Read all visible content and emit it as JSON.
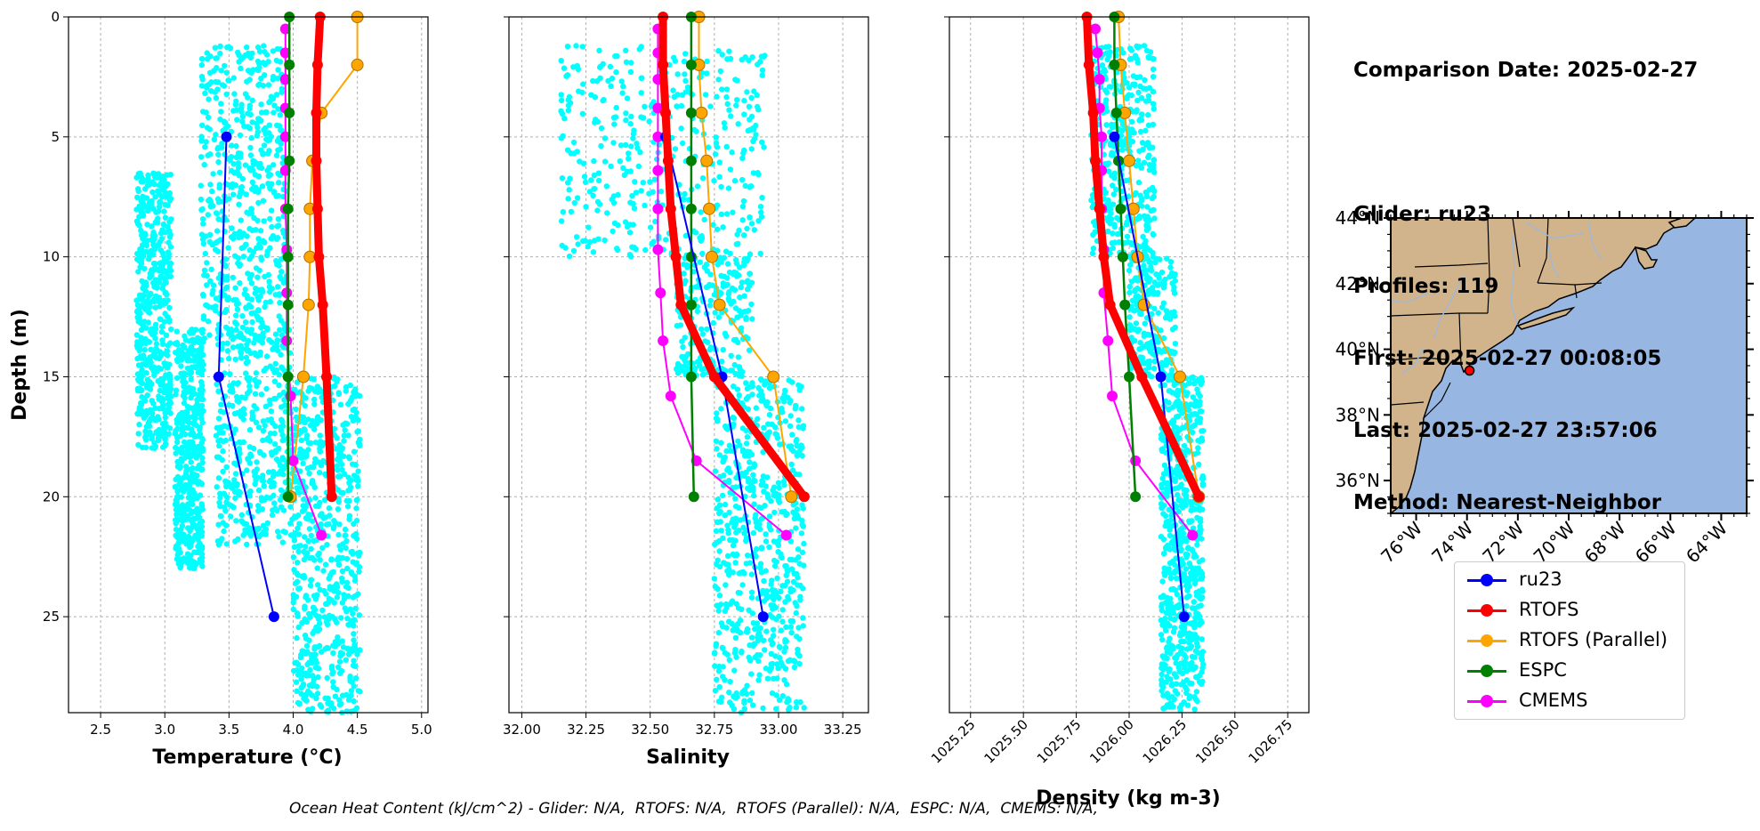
{
  "info": {
    "comparison_date": "Comparison Date: 2025-02-27",
    "glider": "Glider: ru23",
    "profiles": "Profiles: 119",
    "first": "First: 2025-02-27 00:08:05",
    "last": "Last: 2025-02-27 23:57:06",
    "method": "Method: Nearest-Neighbor"
  },
  "footer": "Ocean Heat Content (kJ/cm^2) - Glider: N/A,  RTOFS: N/A,  RTOFS (Parallel): N/A,  ESPC: N/A,  CMEMS: N/A,",
  "colors": {
    "ru23": "#0000ff",
    "RTOFS": "#ff0000",
    "RTOFS (Parallel)": "#ffa500",
    "ESPC": "#008000",
    "CMEMS": "#ff00ff",
    "glider_points": "#00ffff",
    "land": "#d2b48c",
    "ocean": "#97b6e1",
    "rivers": "#a0b8d8"
  },
  "legend": [
    {
      "name": "ru23",
      "color": "#0000ff"
    },
    {
      "name": "RTOFS",
      "color": "#ff0000"
    },
    {
      "name": "RTOFS (Parallel)",
      "color": "#ffa500"
    },
    {
      "name": "ESPC",
      "color": "#008000"
    },
    {
      "name": "CMEMS",
      "color": "#ff00ff"
    }
  ],
  "chart_data": [
    {
      "type": "line",
      "xlabel": "Temperature (°C)",
      "ylabel": "Depth (m)",
      "xlim": [
        2.25,
        5.05
      ],
      "ylim": [
        29,
        0
      ],
      "x_ticks": [
        2.5,
        3.0,
        3.5,
        4.0,
        4.5,
        5.0
      ],
      "x_tick_labels": [
        "2.5",
        "3.0",
        "3.5",
        "4.0",
        "4.5",
        "5.0"
      ],
      "y_ticks": [
        0,
        5,
        10,
        15,
        20,
        25
      ],
      "y_tick_labels": [
        "0",
        "5",
        "10",
        "15",
        "20",
        "25"
      ],
      "grid": true,
      "scatter_cloud": {
        "name": "ru23 profiles",
        "bands": [
          {
            "xmin": 3.28,
            "xmax": 3.95,
            "ymin": 1.2,
            "ymax": 13.5
          },
          {
            "xmin": 2.78,
            "xmax": 3.05,
            "ymin": 6.5,
            "ymax": 18.0
          },
          {
            "xmin": 3.08,
            "xmax": 3.3,
            "ymin": 13.0,
            "ymax": 23.0
          },
          {
            "xmin": 4.0,
            "xmax": 4.52,
            "ymin": 15.0,
            "ymax": 29.0
          },
          {
            "xmin": 3.4,
            "xmax": 4.0,
            "ymin": 13.0,
            "ymax": 22.0
          }
        ]
      },
      "series": [
        {
          "name": "ru23",
          "x": [
            3.48,
            3.42,
            3.85
          ],
          "y": [
            5,
            15,
            25
          ]
        },
        {
          "name": "RTOFS",
          "x": [
            4.21,
            4.19,
            4.18,
            4.18,
            4.19,
            4.2,
            4.23,
            4.26,
            4.3
          ],
          "y": [
            0,
            2,
            4,
            6,
            8,
            10,
            12,
            15,
            20
          ]
        },
        {
          "name": "RTOFS (Parallel)",
          "x": [
            4.5,
            4.5,
            4.22,
            4.15,
            4.13,
            4.13,
            4.12,
            4.08,
            3.98
          ],
          "y": [
            0,
            2,
            4,
            6,
            8,
            10,
            12,
            15,
            20
          ]
        },
        {
          "name": "ESPC",
          "x": [
            3.97,
            3.97,
            3.97,
            3.97,
            3.96,
            3.96,
            3.96,
            3.96,
            3.96
          ],
          "y": [
            0,
            2,
            4,
            6,
            8,
            10,
            12,
            15,
            20
          ]
        },
        {
          "name": "CMEMS",
          "x": [
            3.94,
            3.94,
            3.94,
            3.94,
            3.94,
            3.94,
            3.94,
            3.95,
            3.95,
            3.95,
            3.98,
            4.0,
            4.22
          ],
          "y": [
            0.5,
            1.5,
            2.6,
            3.8,
            5.0,
            6.4,
            8.0,
            9.7,
            11.5,
            13.5,
            15.8,
            18.5,
            21.6
          ]
        }
      ]
    },
    {
      "type": "line",
      "xlabel": "Salinity",
      "ylabel": "",
      "xlim": [
        31.95,
        33.35
      ],
      "ylim": [
        29,
        0
      ],
      "x_ticks": [
        32.0,
        32.25,
        32.5,
        32.75,
        33.0,
        33.25
      ],
      "x_tick_labels": [
        "32.00",
        "32.25",
        "32.50",
        "32.75",
        "33.00",
        "33.25"
      ],
      "y_ticks": [
        0,
        5,
        10,
        15,
        20,
        25
      ],
      "grid": true,
      "scatter_cloud": {
        "name": "ru23 profiles",
        "bands": [
          {
            "xmin": 32.15,
            "xmax": 32.95,
            "ymin": 1.2,
            "ymax": 10.0
          },
          {
            "xmin": 32.6,
            "xmax": 32.9,
            "ymin": 10.0,
            "ymax": 15.0
          },
          {
            "xmin": 32.75,
            "xmax": 33.1,
            "ymin": 15.0,
            "ymax": 29.0
          }
        ]
      },
      "series": [
        {
          "name": "ru23",
          "x": [
            32.56,
            32.78,
            32.94
          ],
          "y": [
            5,
            15,
            25
          ]
        },
        {
          "name": "RTOFS",
          "x": [
            32.55,
            32.55,
            32.56,
            32.57,
            32.58,
            32.6,
            32.62,
            32.75,
            33.1
          ],
          "y": [
            0,
            2,
            4,
            6,
            8,
            10,
            12,
            15,
            20
          ]
        },
        {
          "name": "RTOFS (Parallel)",
          "x": [
            32.69,
            32.69,
            32.7,
            32.72,
            32.73,
            32.74,
            32.77,
            32.98,
            33.05
          ],
          "y": [
            0,
            2,
            4,
            6,
            8,
            10,
            12,
            15,
            20
          ]
        },
        {
          "name": "ESPC",
          "x": [
            32.66,
            32.66,
            32.66,
            32.66,
            32.66,
            32.66,
            32.66,
            32.66,
            32.67
          ],
          "y": [
            0,
            2,
            4,
            6,
            8,
            10,
            12,
            15,
            20
          ]
        },
        {
          "name": "CMEMS",
          "x": [
            32.53,
            32.53,
            32.53,
            32.53,
            32.53,
            32.53,
            32.53,
            32.53,
            32.54,
            32.55,
            32.58,
            32.68,
            33.03
          ],
          "y": [
            0.5,
            1.5,
            2.6,
            3.8,
            5.0,
            6.4,
            8.0,
            9.7,
            11.5,
            13.5,
            15.8,
            18.5,
            21.6
          ]
        }
      ]
    },
    {
      "type": "line",
      "xlabel": "Density (kg m-3)",
      "ylabel": "",
      "xlim": [
        1025.15,
        1026.85
      ],
      "ylim": [
        29,
        0
      ],
      "x_ticks": [
        1025.25,
        1025.5,
        1025.75,
        1026.0,
        1026.25,
        1026.5,
        1026.75
      ],
      "x_tick_labels": [
        "1025.25",
        "1025.50",
        "1025.75",
        "1026.00",
        "1026.25",
        "1026.50",
        "1026.75"
      ],
      "y_ticks": [
        0,
        5,
        10,
        15,
        20,
        25
      ],
      "grid": true,
      "scatter_cloud": {
        "name": "ru23 profiles",
        "bands": [
          {
            "xmin": 1025.82,
            "xmax": 1026.12,
            "ymin": 1.2,
            "ymax": 10.0
          },
          {
            "xmin": 1026.0,
            "xmax": 1026.22,
            "ymin": 10.0,
            "ymax": 15.0
          },
          {
            "xmin": 1026.15,
            "xmax": 1026.35,
            "ymin": 15.0,
            "ymax": 29.0
          }
        ]
      },
      "series": [
        {
          "name": "ru23",
          "x": [
            1025.93,
            1026.15,
            1026.26
          ],
          "y": [
            5,
            15,
            25
          ]
        },
        {
          "name": "RTOFS",
          "x": [
            1025.8,
            1025.81,
            1025.83,
            1025.84,
            1025.86,
            1025.88,
            1025.91,
            1026.06,
            1026.33
          ],
          "y": [
            0,
            2,
            4,
            6,
            8,
            10,
            12,
            15,
            20
          ]
        },
        {
          "name": "RTOFS (Parallel)",
          "x": [
            1025.95,
            1025.96,
            1025.98,
            1026.0,
            1026.02,
            1026.04,
            1026.07,
            1026.24,
            1026.33
          ],
          "y": [
            0,
            2,
            4,
            6,
            8,
            10,
            12,
            15,
            20
          ]
        },
        {
          "name": "ESPC",
          "x": [
            1025.93,
            1025.93,
            1025.94,
            1025.95,
            1025.96,
            1025.97,
            1025.98,
            1026.0,
            1026.03
          ],
          "y": [
            0,
            2,
            4,
            6,
            8,
            10,
            12,
            15,
            20
          ]
        },
        {
          "name": "CMEMS",
          "x": [
            1025.84,
            1025.85,
            1025.86,
            1025.86,
            1025.87,
            1025.87,
            1025.87,
            1025.88,
            1025.88,
            1025.9,
            1025.92,
            1026.03,
            1026.3
          ],
          "y": [
            0.5,
            1.5,
            2.6,
            3.8,
            5.0,
            6.4,
            8.0,
            9.7,
            11.5,
            13.5,
            15.8,
            18.5,
            21.6
          ]
        }
      ]
    }
  ],
  "map": {
    "lon_range": [
      -77.0,
      -63.0
    ],
    "lat_range": [
      35.0,
      44.0
    ],
    "lat_ticks": [
      44,
      42,
      40,
      38,
      36
    ],
    "lat_tick_labels": [
      "44°N",
      "42°N",
      "40°N",
      "38°N",
      "36°N"
    ],
    "lon_ticks": [
      -76,
      -74,
      -72,
      -70,
      -68,
      -66,
      -64
    ],
    "lon_tick_labels": [
      "76°W",
      "74°W",
      "72°W",
      "70°W",
      "68°W",
      "66°W",
      "64°W"
    ],
    "glider_position": {
      "lon": -73.9,
      "lat": 39.35
    }
  }
}
